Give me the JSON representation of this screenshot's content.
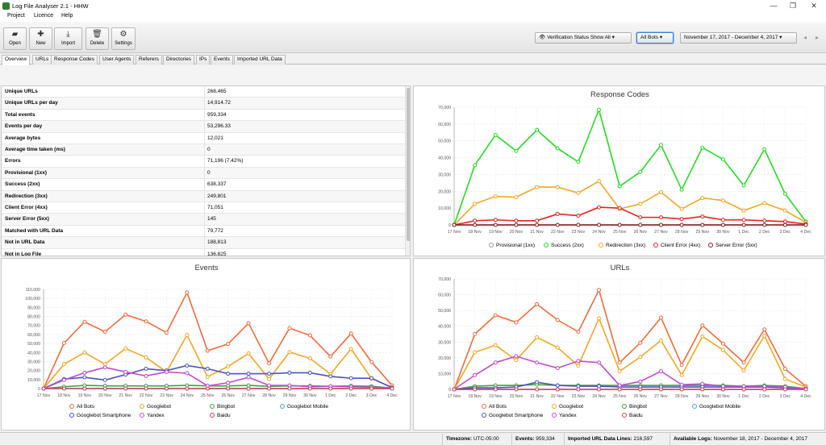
{
  "window": {
    "title": "Log File Analyser 2.1 - HHW",
    "minimize": "—",
    "maximize": "❐",
    "close": "✕"
  },
  "menu": [
    "Project",
    "Licence",
    "Help"
  ],
  "toolbar": {
    "buttons": [
      {
        "label": "Open",
        "icon": "folder-icon",
        "glyph": "▰"
      },
      {
        "label": "New",
        "icon": "plus-icon",
        "glyph": "✚"
      },
      {
        "label": "Import",
        "icon": "download-icon",
        "glyph": "⤓"
      },
      {
        "label": "Delete",
        "icon": "trash-icon",
        "glyph": "🗑"
      },
      {
        "label": "Settings",
        "icon": "gear-icon",
        "glyph": "⚙"
      }
    ],
    "verification": "Verification Status Show All",
    "bots": "All Bots",
    "daterange": "November 17, 2017 - December 4, 2017",
    "dd_arrow": "▾",
    "prev": "◂",
    "next": "▸"
  },
  "tabs": [
    "Overview",
    "URLs",
    "Response Codes",
    "User Agents",
    "Referers",
    "Directories",
    "IPs",
    "Events",
    "Imported URL Data"
  ],
  "stats": [
    [
      "Unique URLs",
      "268,465"
    ],
    [
      "Unique URLs per day",
      "14,914.72"
    ],
    [
      "Total events",
      "959,334"
    ],
    [
      "Events per day",
      "53,296.33"
    ],
    [
      "Average bytes",
      "12,021"
    ],
    [
      "Average time taken (ms)",
      "0"
    ],
    [
      "Errors",
      "71,196 (7.42%)"
    ],
    [
      "Provisional (1xx)",
      "0"
    ],
    [
      "Success (2xx)",
      "638,337"
    ],
    [
      "Redirection (3xx)",
      "249,801"
    ],
    [
      "Client Error (4xx)",
      "71,051"
    ],
    [
      "Server Error (5xx)",
      "145"
    ],
    [
      "Matched with URL Data",
      "79,772"
    ],
    [
      "Not in URL Data",
      "188,813"
    ],
    [
      "Not in Log File",
      "136,825"
    ]
  ],
  "status": {
    "timezone_label": "Timezone:",
    "timezone": "UTC-05:00",
    "events_label": "Events:",
    "events": "959,334",
    "imported_label": "Imported URL Data Lines:",
    "imported": "216,597",
    "available_label": "Available Logs:",
    "available": "November 18, 2017 - December 4, 2017"
  },
  "chart_data": [
    {
      "id": "response_codes",
      "type": "line",
      "title": "Response Codes",
      "categories": [
        "17 Nov",
        "18 Nov",
        "19 Nov",
        "20 Nov",
        "21 Nov",
        "22 Nov",
        "23 Nov",
        "24 Nov",
        "25 Nov",
        "26 Nov",
        "27 Nov",
        "28 Nov",
        "29 Nov",
        "30 Nov",
        "1 Dec",
        "2 Dec",
        "3 Dec",
        "4 Dec"
      ],
      "ylim": [
        0,
        70000
      ],
      "yticks": [
        "0",
        "10,000",
        "20,000",
        "30,000",
        "40,000",
        "50,000",
        "60,000",
        "70,000"
      ],
      "grid": true,
      "legend": "bottom",
      "series": [
        {
          "name": "Provisional (1xx)",
          "color": "#9e9e9e",
          "values": [
            0,
            0,
            0,
            0,
            0,
            0,
            0,
            0,
            0,
            0,
            0,
            0,
            0,
            0,
            0,
            0,
            0,
            0
          ]
        },
        {
          "name": "Success (2xx)",
          "color": "#22dd22",
          "values": [
            0,
            35500,
            53500,
            44000,
            56500,
            45500,
            37500,
            68500,
            23000,
            31500,
            47500,
            21000,
            46000,
            39000,
            23500,
            45000,
            18500,
            2000
          ]
        },
        {
          "name": "Redirection (3xx)",
          "color": "#f5a623",
          "values": [
            0,
            12500,
            17000,
            16500,
            22500,
            22500,
            19000,
            26000,
            9500,
            12500,
            19500,
            9500,
            16000,
            14500,
            8500,
            13000,
            8500,
            1500
          ]
        },
        {
          "name": "Client Error (4xx)",
          "color": "#e8221c",
          "values": [
            0,
            2500,
            3000,
            2500,
            2500,
            6500,
            5500,
            10500,
            10000,
            4500,
            4500,
            3500,
            5000,
            3000,
            3000,
            2500,
            2000,
            500
          ]
        },
        {
          "name": "Server Error (5xx)",
          "color": "#8b1a1a",
          "values": [
            0,
            0,
            0,
            0,
            0,
            0,
            0,
            0,
            0,
            0,
            0,
            0,
            0,
            0,
            0,
            0,
            0,
            0
          ]
        }
      ]
    },
    {
      "id": "events",
      "type": "line",
      "title": "Events",
      "categories": [
        "17 Nov",
        "18 Nov",
        "19 Nov",
        "20 Nov",
        "21 Nov",
        "22 Nov",
        "23 Nov",
        "24 Nov",
        "25 Nov",
        "26 Nov",
        "27 Nov",
        "28 Nov",
        "29 Nov",
        "30 Nov",
        "1 Dec",
        "2 Dec",
        "3 Dec",
        "4 Dec"
      ],
      "ylim": [
        0,
        110000
      ],
      "yticks": [
        "0",
        "10,000",
        "20,000",
        "30,000",
        "40,000",
        "50,000",
        "60,000",
        "70,000",
        "80,000",
        "90,000",
        "100,000",
        "110,000"
      ],
      "grid": true,
      "legend": "bottom",
      "series": [
        {
          "name": "All Bots",
          "color": "#f26b3a",
          "values": [
            0,
            50500,
            74000,
            63000,
            82000,
            74500,
            62000,
            106500,
            42000,
            49500,
            72500,
            28000,
            67000,
            59000,
            35500,
            61000,
            29500,
            3500
          ]
        },
        {
          "name": "Googlebot",
          "color": "#f5a623",
          "values": [
            0,
            27000,
            40000,
            27000,
            44500,
            34500,
            18500,
            59500,
            13000,
            24500,
            39000,
            10500,
            40500,
            33500,
            16000,
            44000,
            11000,
            1500
          ]
        },
        {
          "name": "Bingbot",
          "color": "#3aa63a",
          "values": [
            0,
            2000,
            3500,
            3000,
            3000,
            3000,
            3000,
            3500,
            3000,
            3000,
            3500,
            2500,
            3000,
            3000,
            2500,
            3000,
            2500,
            500
          ]
        },
        {
          "name": "Googlebot Mobile",
          "color": "#4aa8d8",
          "values": [
            0,
            0,
            0,
            0,
            0,
            0,
            0,
            0,
            0,
            0,
            0,
            0,
            0,
            0,
            0,
            0,
            0,
            0
          ]
        },
        {
          "name": "Googlebot Smartphone",
          "color": "#4a52c4",
          "values": [
            0,
            10500,
            12500,
            9500,
            15500,
            22000,
            20000,
            25500,
            22000,
            16500,
            16500,
            16500,
            17500,
            17500,
            13500,
            11500,
            11500,
            1000
          ]
        },
        {
          "name": "Yandex",
          "color": "#c04ad0",
          "values": [
            0,
            9500,
            17500,
            23500,
            18500,
            14000,
            18500,
            17000,
            3000,
            6500,
            12500,
            3500,
            3500,
            2000,
            2500,
            2000,
            1500,
            500
          ]
        },
        {
          "name": "Baidu",
          "color": "#d0405a",
          "values": [
            0,
            0,
            0,
            0,
            0,
            0,
            0,
            0,
            0,
            0,
            0,
            0,
            0,
            0,
            0,
            0,
            0,
            0
          ]
        }
      ]
    },
    {
      "id": "urls",
      "type": "line",
      "title": "URLs",
      "categories": [
        "17 Nov",
        "18 Nov",
        "19 Nov",
        "20 Nov",
        "21 Nov",
        "22 Nov",
        "23 Nov",
        "24 Nov",
        "25 Nov",
        "26 Nov",
        "27 Nov",
        "28 Nov",
        "29 Nov",
        "30 Nov",
        "1 Dec",
        "2 Dec",
        "3 Dec",
        "4 Dec"
      ],
      "ylim": [
        0,
        70000
      ],
      "yticks": [
        "0",
        "10,000",
        "20,000",
        "30,000",
        "40,000",
        "50,000",
        "60,000",
        "70,000"
      ],
      "grid": true,
      "legend": "bottom",
      "series": [
        {
          "name": "All Bots",
          "color": "#f26b3a",
          "values": [
            0,
            35000,
            47000,
            42500,
            54000,
            44000,
            36500,
            63000,
            17000,
            29500,
            45500,
            15500,
            40500,
            29000,
            17000,
            38000,
            13000,
            2000
          ]
        },
        {
          "name": "Googlebot",
          "color": "#f5a623",
          "values": [
            0,
            23500,
            28000,
            18500,
            33000,
            26500,
            15000,
            45000,
            11500,
            20500,
            31000,
            9000,
            33500,
            25000,
            12000,
            34000,
            6500,
            1500
          ]
        },
        {
          "name": "Bingbot",
          "color": "#3aa63a",
          "values": [
            0,
            2000,
            2500,
            2500,
            3000,
            2500,
            2500,
            2500,
            2500,
            2500,
            2500,
            2500,
            2500,
            2500,
            2000,
            2500,
            2000,
            500
          ]
        },
        {
          "name": "Googlebot Mobile",
          "color": "#4aa8d8",
          "values": [
            0,
            0,
            0,
            0,
            0,
            0,
            0,
            0,
            0,
            0,
            0,
            0,
            0,
            0,
            0,
            0,
            0,
            0
          ]
        },
        {
          "name": "Googlebot Smartphone",
          "color": "#4a52c4",
          "values": [
            0,
            1000,
            1000,
            1500,
            4500,
            2500,
            2000,
            2000,
            1500,
            1500,
            1500,
            1500,
            1500,
            1500,
            1500,
            1500,
            1000,
            500
          ]
        },
        {
          "name": "Yandex",
          "color": "#c04ad0",
          "values": [
            0,
            9000,
            17000,
            21000,
            17000,
            13500,
            18000,
            17000,
            2500,
            5000,
            11500,
            3000,
            3500,
            2000,
            2000,
            2000,
            1500,
            500
          ]
        },
        {
          "name": "Baidu",
          "color": "#d0405a",
          "values": [
            0,
            0,
            0,
            0,
            0,
            0,
            0,
            0,
            0,
            0,
            0,
            0,
            0,
            0,
            0,
            0,
            0,
            0
          ]
        }
      ]
    }
  ]
}
